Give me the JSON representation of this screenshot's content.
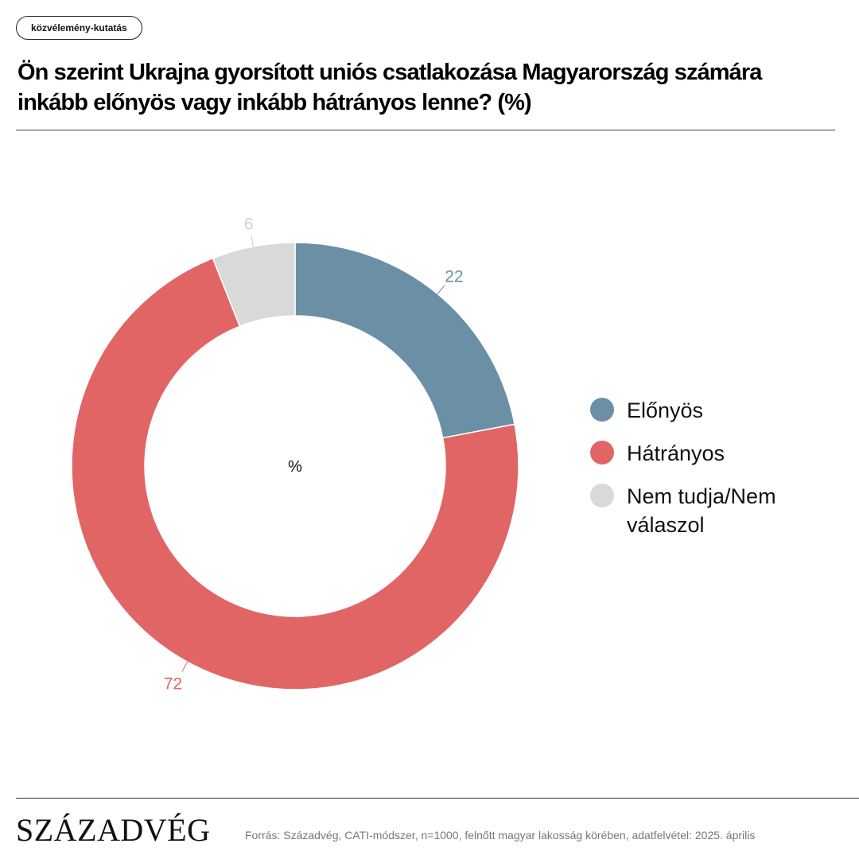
{
  "tag": "közvélemény-kutatás",
  "title": "Ön szerint Ukrajna gyorsított uniós csatlakozása Magyarország számára inkább előnyös vagy inkább hátrányos lenne? (%)",
  "chart_data": {
    "type": "pie",
    "variant": "donut",
    "center_label": "%",
    "categories": [
      "Előnyös",
      "Hátrányos",
      "Nem tudja/Nem válaszol"
    ],
    "values": [
      22,
      72,
      6
    ],
    "colors": [
      "#6B8FA5",
      "#E26565",
      "#D9D9D9"
    ],
    "data_label_colors": [
      "#6B8FA5",
      "#E26565",
      "#CFCFCF"
    ],
    "legend_position": "right"
  },
  "legend": {
    "items": [
      {
        "label": "Előnyös",
        "color": "#6B8FA5"
      },
      {
        "label": "Hátrányos",
        "color": "#E26565"
      },
      {
        "label": "Nem tudja/Nem válaszol",
        "color": "#D9D9D9"
      }
    ]
  },
  "footer": {
    "logo": "SZÁZADVÉG",
    "source": "Forrás: Századvég, CATI-módszer, n=1000, felnőtt magyar lakosság körében, adatfelvétel: 2025. április"
  }
}
